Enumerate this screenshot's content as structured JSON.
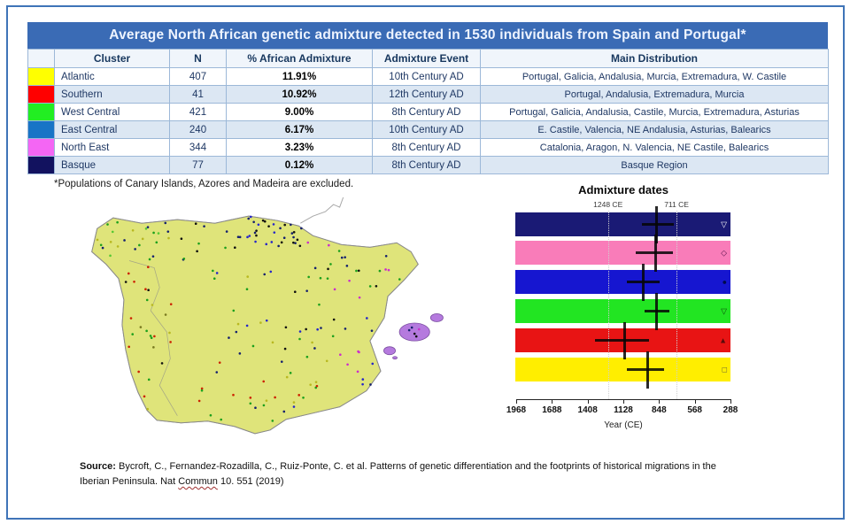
{
  "table": {
    "title": "Average North African genetic admixture detected in 1530 individuals from Spain and Portugal*",
    "columns": [
      "",
      "Cluster",
      "N",
      "% African Admixture",
      "Admixture Event",
      "Main Distribution"
    ],
    "rows": [
      {
        "swatch": "#ffff00",
        "cluster": "Atlantic",
        "n": "407",
        "pct": "11.91%",
        "event": "10th Century AD",
        "dist": "Portugal, Galicia, Andalusia, Murcia, Extremadura, W. Castile"
      },
      {
        "swatch": "#ff0000",
        "cluster": "Southern",
        "n": "41",
        "pct": "10.92%",
        "event": "12th Century AD",
        "dist": "Portugal, Andalusia, Extremadura, Murcia"
      },
      {
        "swatch": "#22ee22",
        "cluster": "West Central",
        "n": "421",
        "pct": "9.00%",
        "event": "8th Century AD",
        "dist": "Portugal, Galicia, Andalusia, Castile, Murcia, Extremadura, Asturias"
      },
      {
        "swatch": "#1874c6",
        "cluster": "East Central",
        "n": "240",
        "pct": "6.17%",
        "event": "10th Century AD",
        "dist": "E. Castile, Valencia, NE Andalusia, Asturias, Balearics"
      },
      {
        "swatch": "#f466f4",
        "cluster": "North East",
        "n": "344",
        "pct": "3.23%",
        "event": "8th Century AD",
        "dist": "Catalonia, Aragon, N. Valencia, NE Castile, Balearics"
      },
      {
        "swatch": "#12125f",
        "cluster": "Basque",
        "n": "77",
        "pct": "0.12%",
        "event": "8th Century AD",
        "dist": "Basque Region"
      }
    ]
  },
  "footnote": "*Populations of Canary Islands, Azores and Madeira are excluded.",
  "chart_data": {
    "type": "bar",
    "variant": "horizontal-interval-errorbar",
    "title": "Admixture dates",
    "xlabel": "Year (CE)",
    "x_ticks": [
      1968,
      1688,
      1408,
      1128,
      848,
      568,
      288
    ],
    "x_range": [
      1968,
      288
    ],
    "x_axis_reversed": true,
    "reference_lines": [
      {
        "label": "1248 CE",
        "year": 1248
      },
      {
        "label": "711 CE",
        "year": 711
      }
    ],
    "series": [
      {
        "name": "Basque",
        "color": "#1a1a75",
        "date_ce": 865,
        "ci_ce": [
          733,
          983
        ],
        "marker": {
          "glyph": "▽",
          "color": "#ffffff"
        }
      },
      {
        "name": "North East",
        "color": "#f97cb9",
        "date_ce": 878,
        "ci_ce": [
          740,
          1030
        ],
        "marker": {
          "glyph": "◇",
          "color": "#55104a"
        }
      },
      {
        "name": "East Central",
        "color": "#1616d0",
        "date_ce": 971,
        "ci_ce": [
          844,
          1100
        ],
        "marker": {
          "glyph": "●",
          "color": "#000a50"
        }
      },
      {
        "name": "West Central",
        "color": "#22e522",
        "date_ce": 866,
        "ci_ce": [
          767,
          962
        ],
        "marker": {
          "glyph": "▽",
          "color": "#0a4a0a"
        }
      },
      {
        "name": "Southern",
        "color": "#e81414",
        "date_ce": 1120,
        "ci_ce": [
          927,
          1352
        ],
        "marker": {
          "glyph": "▲",
          "color": "#5a0a0a"
        }
      },
      {
        "name": "Atlantic",
        "color": "#ffee00",
        "date_ce": 936,
        "ci_ce": [
          809,
          1100
        ],
        "marker": {
          "glyph": "□",
          "color": "#444444"
        }
      }
    ]
  },
  "map": {
    "regions": {
      "base": "#dfe47a",
      "west_portugal": "#f0ef5e",
      "south_andalusia": "#eef06a",
      "northwest_galicia": "#86dd55",
      "north_central_green": "#9ade60",
      "north_slate": "#6868b8",
      "basque_navy": "#1c2c86",
      "northeast_pink": "#f470b4",
      "northeast_magenta": "#d84ad8",
      "center_blue": "#4343e8",
      "southeast_blue": "#5050e0",
      "east_violet": "#9a68e0",
      "west_center_green": "#6ade4e",
      "south_green": "#46e038",
      "south_coast_green": "#58d84a",
      "balearics_purple": "#b57ade"
    },
    "dot_palette": [
      "#15206e",
      "#101010",
      "#1ca01c",
      "#2626c8",
      "#cb2ecb",
      "#b8b820",
      "#cc2200",
      "#7a7a20",
      "#55c832"
    ]
  },
  "source": {
    "prefix": "Source:",
    "line1": " Bycroft, C., Fernandez-Rozadilla, C., Ruiz-Ponte, C. et al. Patterns of genetic differentiation and the footprints of historical migrations in the",
    "line2_pre": "Iberian Peninsula. Nat ",
    "line2_word": "Commun",
    "line2_post": " 10. 551 (2019)"
  }
}
